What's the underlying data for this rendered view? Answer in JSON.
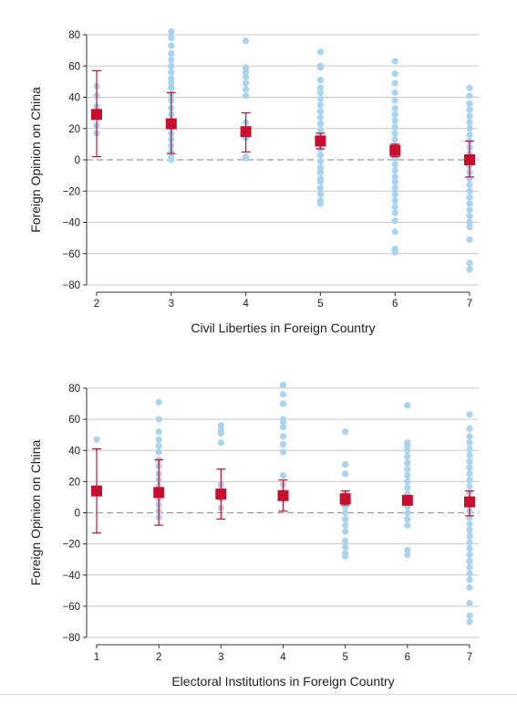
{
  "colors": {
    "points": "#a9d3ef",
    "estimate": "#c8102e",
    "interval": "#c8102e",
    "grid": "#c8c8c8",
    "zero_line": "#9a9a9a"
  },
  "chart_data": [
    {
      "type": "scatter",
      "xlabel": "Civil Liberties in Foreign Country",
      "ylabel": "Foreign Opinion on China",
      "xlim": [
        2,
        7
      ],
      "ylim": [
        -80,
        80
      ],
      "xticks": [
        2,
        3,
        4,
        5,
        6,
        7
      ],
      "yticks": [
        80,
        60,
        40,
        20,
        0,
        -20,
        -40,
        -60,
        -80
      ],
      "ytick_labels": [
        "80",
        "60",
        "40",
        "20",
        "0",
        "−20",
        "−40",
        "−60",
        "−80"
      ],
      "grid": true,
      "zero_reference_line": "dashed",
      "observations": [
        {
          "x": 2,
          "y": [
            47,
            41,
            34,
            28,
            22,
            17
          ]
        },
        {
          "x": 3,
          "y": [
            82,
            78,
            73,
            68,
            64,
            60,
            56,
            52,
            49,
            46,
            42,
            38,
            33,
            29,
            25,
            21,
            17,
            13,
            9,
            5,
            2,
            0
          ]
        },
        {
          "x": 4,
          "y": [
            76,
            59,
            56,
            53,
            49,
            45,
            41,
            24,
            18,
            14,
            2,
            1
          ]
        },
        {
          "x": 5,
          "y": [
            69,
            60,
            59,
            51,
            46,
            43,
            39,
            35,
            31,
            27,
            23,
            19,
            15,
            11,
            7,
            3,
            -1,
            -5,
            -8,
            -12,
            -14,
            -18,
            -22,
            -26,
            -28
          ]
        },
        {
          "x": 6,
          "y": [
            63,
            55,
            49,
            43,
            38,
            33,
            29,
            25,
            21,
            17,
            13,
            9,
            5,
            1,
            -3,
            -7,
            -11,
            -14,
            -18,
            -22,
            -26,
            -30,
            -34,
            -39,
            -46,
            -57,
            -59
          ]
        },
        {
          "x": 7,
          "y": [
            46,
            41,
            36,
            32,
            28,
            24,
            20,
            16,
            12,
            8,
            4,
            0,
            -4,
            -8,
            -12,
            -16,
            -20,
            -24,
            -28,
            -32,
            -36,
            -40,
            -43,
            -51,
            -66,
            -70
          ]
        }
      ],
      "estimates": [
        {
          "x": 2,
          "mean": 29,
          "lower": 2,
          "upper": 57
        },
        {
          "x": 3,
          "mean": 23,
          "lower": 4,
          "upper": 43
        },
        {
          "x": 4,
          "mean": 18,
          "lower": 5,
          "upper": 30
        },
        {
          "x": 5,
          "mean": 12,
          "lower": 7,
          "upper": 17
        },
        {
          "x": 6,
          "mean": 6,
          "lower": 2,
          "upper": 10
        },
        {
          "x": 7,
          "mean": 0,
          "lower": -11,
          "upper": 12
        }
      ]
    },
    {
      "type": "scatter",
      "xlabel": "Electoral Institutions in Foreign Country",
      "ylabel": "Foreign Opinion on China",
      "xlim": [
        1,
        7
      ],
      "ylim": [
        -80,
        80
      ],
      "xticks": [
        1,
        2,
        3,
        4,
        5,
        6,
        7
      ],
      "yticks": [
        80,
        60,
        40,
        20,
        0,
        -20,
        -40,
        -60,
        -80
      ],
      "ytick_labels": [
        "80",
        "60",
        "40",
        "20",
        "0",
        "−20",
        "−40",
        "−60",
        "−80"
      ],
      "grid": true,
      "zero_reference_line": "dashed",
      "observations": [
        {
          "x": 1,
          "y": [
            47
          ]
        },
        {
          "x": 2,
          "y": [
            71,
            60,
            52,
            47,
            43,
            39,
            34,
            30,
            25,
            21,
            17,
            13,
            9,
            5,
            1,
            -3
          ]
        },
        {
          "x": 3,
          "y": [
            56,
            53,
            51,
            45,
            18,
            9,
            3
          ]
        },
        {
          "x": 4,
          "y": [
            82,
            76,
            70,
            60,
            58,
            55,
            49,
            44,
            39,
            24,
            18,
            13,
            9
          ]
        },
        {
          "x": 5,
          "y": [
            52,
            31,
            25,
            12,
            8,
            4,
            0,
            -4,
            -8,
            -12,
            -18,
            -22,
            -26,
            -28
          ]
        },
        {
          "x": 6,
          "y": [
            69,
            45,
            43,
            40,
            36,
            32,
            28,
            24,
            20,
            16,
            12,
            8,
            4,
            0,
            -4,
            -8,
            -24,
            -27
          ]
        },
        {
          "x": 7,
          "y": [
            63,
            54,
            49,
            45,
            41,
            37,
            33,
            29,
            25,
            21,
            17,
            13,
            9,
            5,
            1,
            -3,
            -7,
            -11,
            -15,
            -19,
            -23,
            -27,
            -31,
            -35,
            -39,
            -43,
            -48,
            -58,
            -66,
            -70
          ]
        }
      ],
      "estimates": [
        {
          "x": 1,
          "mean": 14,
          "lower": -13,
          "upper": 41
        },
        {
          "x": 2,
          "mean": 13,
          "lower": -8,
          "upper": 34
        },
        {
          "x": 3,
          "mean": 12,
          "lower": -4,
          "upper": 28
        },
        {
          "x": 4,
          "mean": 11,
          "lower": 1,
          "upper": 21
        },
        {
          "x": 5,
          "mean": 9,
          "lower": 5,
          "upper": 14
        },
        {
          "x": 6,
          "mean": 8,
          "lower": 5,
          "upper": 11
        },
        {
          "x": 7,
          "mean": 7,
          "lower": -2,
          "upper": 14
        }
      ]
    }
  ]
}
